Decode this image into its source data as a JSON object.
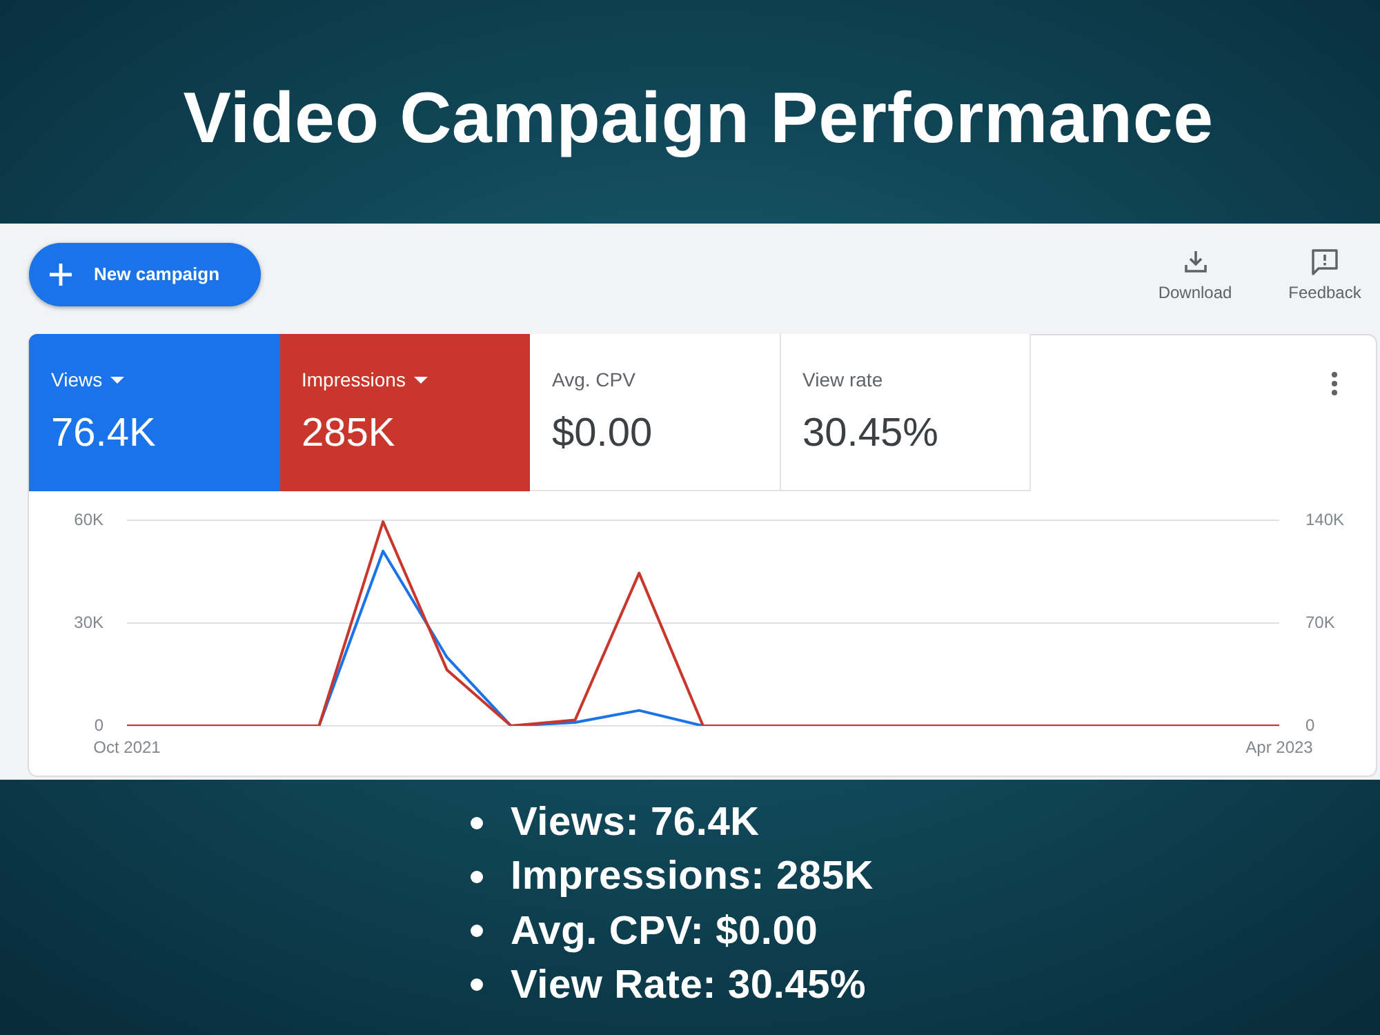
{
  "chart_data": {
    "type": "line",
    "title": "Video Campaign Performance",
    "categories": [
      "Oct 2021",
      null,
      null,
      null,
      null,
      null,
      null,
      null,
      null,
      null,
      null,
      null,
      null,
      null,
      null,
      null,
      null,
      null,
      "Apr 2023"
    ],
    "series": [
      {
        "color": "#1a73e8",
        "values": [
          null,
          null,
          null,
          0,
          51000,
          20000,
          0,
          1000,
          4500,
          0,
          null,
          null,
          null,
          null,
          null,
          null,
          null,
          null,
          null
        ]
      },
      {
        "color": "#c9372c",
        "axis": "y2",
        "values": [
          0,
          0,
          0,
          0,
          139000,
          38000,
          0,
          4000,
          104000,
          0,
          0,
          0,
          0,
          0,
          0,
          0,
          0,
          0,
          0
        ]
      }
    ],
    "ylim": [
      0,
      60000
    ],
    "yticks": [
      0,
      {
        "value": 30000,
        "label": "30K"
      },
      {
        "value": 60000,
        "label": "60K"
      }
    ],
    "y2lim": [
      0,
      140000
    ],
    "y2ticks": [
      0,
      {
        "value": 70000,
        "label": "70K"
      },
      {
        "value": 140000,
        "label": "140K"
      }
    ],
    "grid": "y",
    "marker": "none",
    "annotations": [
      "New campaign",
      "Download",
      "Feedback",
      "Views",
      "76.4K",
      "Impressions",
      "285K",
      "Avg. CPV",
      "$0.00",
      "View rate",
      "30.45%",
      "Views: 76.4K",
      "Impressions: 285K",
      "Avg. CPV: $0.00",
      "View Rate: 30.45%"
    ]
  }
}
